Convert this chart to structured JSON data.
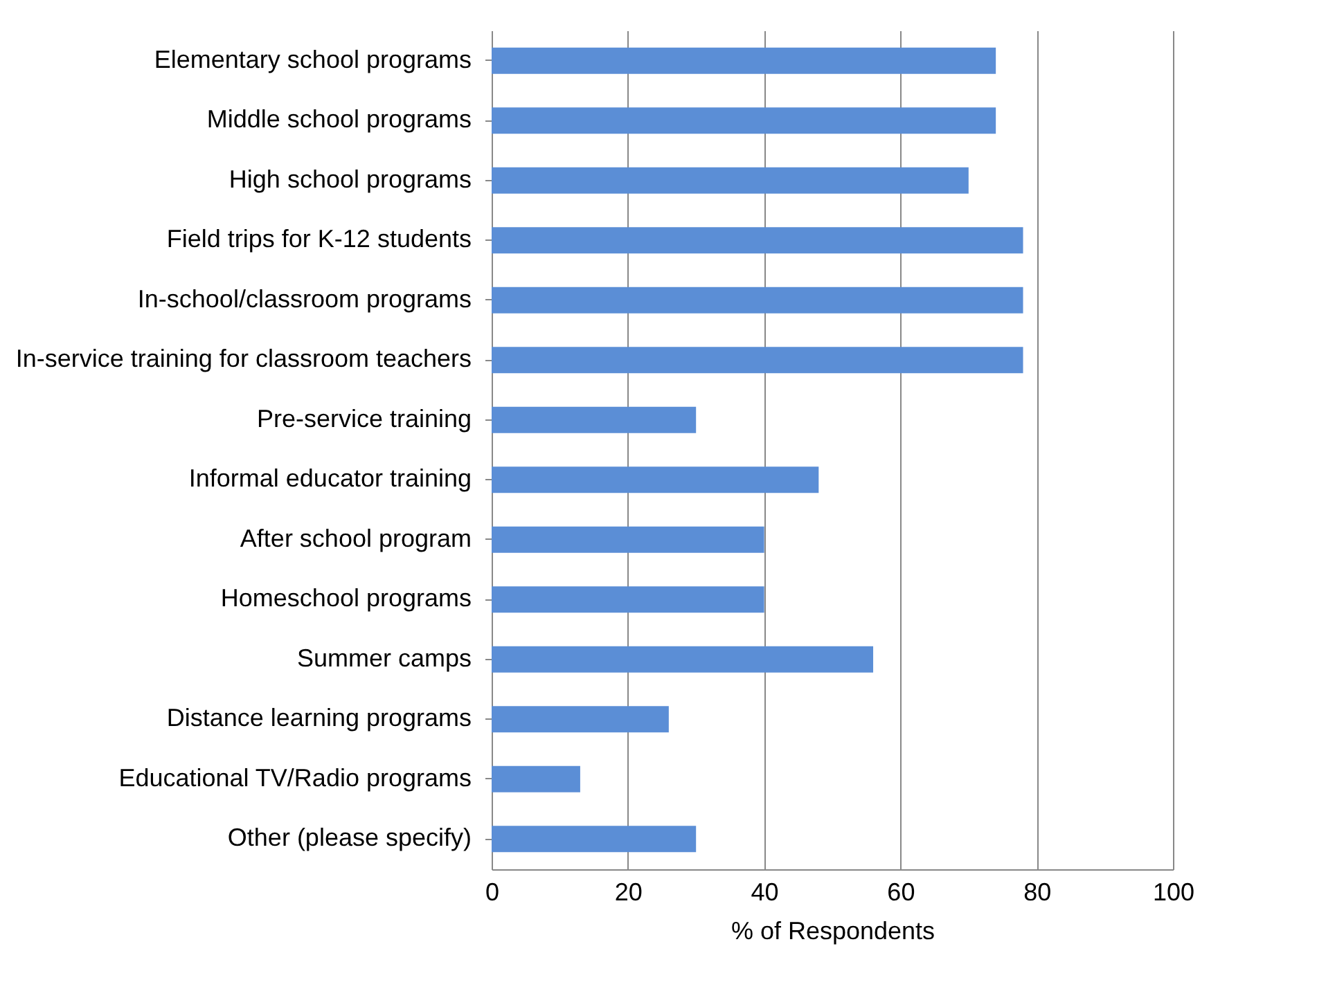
{
  "chart_data": {
    "type": "bar",
    "orientation": "horizontal",
    "xlabel": "% of Respondents",
    "categories": [
      "Elementary school programs",
      "Middle school programs",
      "High school programs",
      "Field trips for K-12 students",
      "In-school/classroom programs",
      "In-service training for classroom teachers",
      "Pre-service training",
      "Informal educator training",
      "After school program",
      "Homeschool programs",
      "Summer camps",
      "Distance learning programs",
      "Educational TV/Radio programs",
      "Other (please specify)"
    ],
    "values": [
      74,
      74,
      70,
      78,
      78,
      78,
      30,
      48,
      40,
      40,
      56,
      26,
      13,
      30
    ],
    "color": "#5b8ed6",
    "xlim": [
      0,
      100
    ],
    "xticks": [
      0,
      20,
      40,
      60,
      80,
      100
    ],
    "grid": "x"
  }
}
